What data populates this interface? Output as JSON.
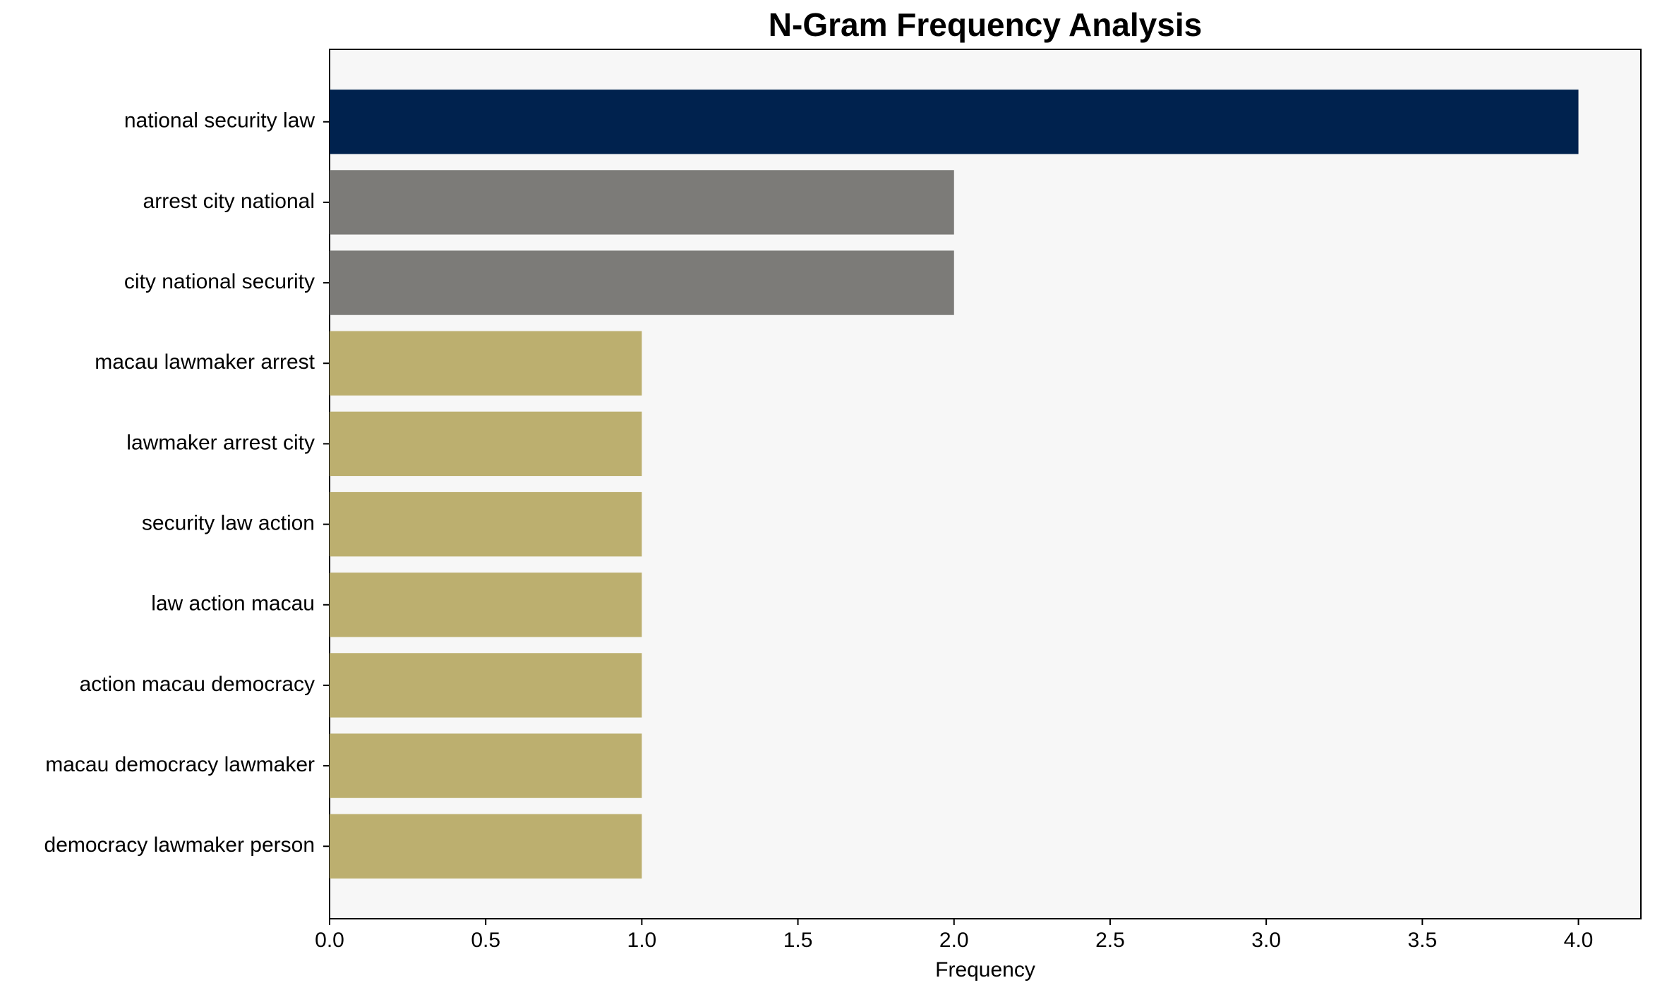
{
  "chart_data": {
    "type": "barh",
    "title": "N-Gram Frequency Analysis",
    "x_label": "Frequency",
    "categories": [
      "national security law",
      "arrest city national",
      "city national security",
      "macau lawmaker arrest",
      "lawmaker arrest city",
      "security law action",
      "law action macau",
      "action macau democracy",
      "macau democracy lawmaker",
      "democracy lawmaker person"
    ],
    "values": [
      4,
      2,
      2,
      1,
      1,
      1,
      1,
      1,
      1,
      1
    ],
    "colors": [
      "#00224e",
      "#7c7b78",
      "#7c7b78",
      "#bcaf6f",
      "#bcaf6f",
      "#bcaf6f",
      "#bcaf6f",
      "#bcaf6f",
      "#bcaf6f",
      "#bcaf6f"
    ],
    "xlim": [
      0,
      4.2
    ],
    "xticks": [
      {
        "value": 0,
        "label": "0.0"
      },
      {
        "value": 0.5,
        "label": "0.5"
      },
      {
        "value": 1,
        "label": "1.0"
      },
      {
        "value": 1.5,
        "label": "1.5"
      },
      {
        "value": 2,
        "label": "2.0"
      },
      {
        "value": 2.5,
        "label": "2.5"
      },
      {
        "value": 3,
        "label": "3.0"
      },
      {
        "value": 3.5,
        "label": "3.5"
      },
      {
        "value": 4,
        "label": "4.0"
      }
    ]
  }
}
